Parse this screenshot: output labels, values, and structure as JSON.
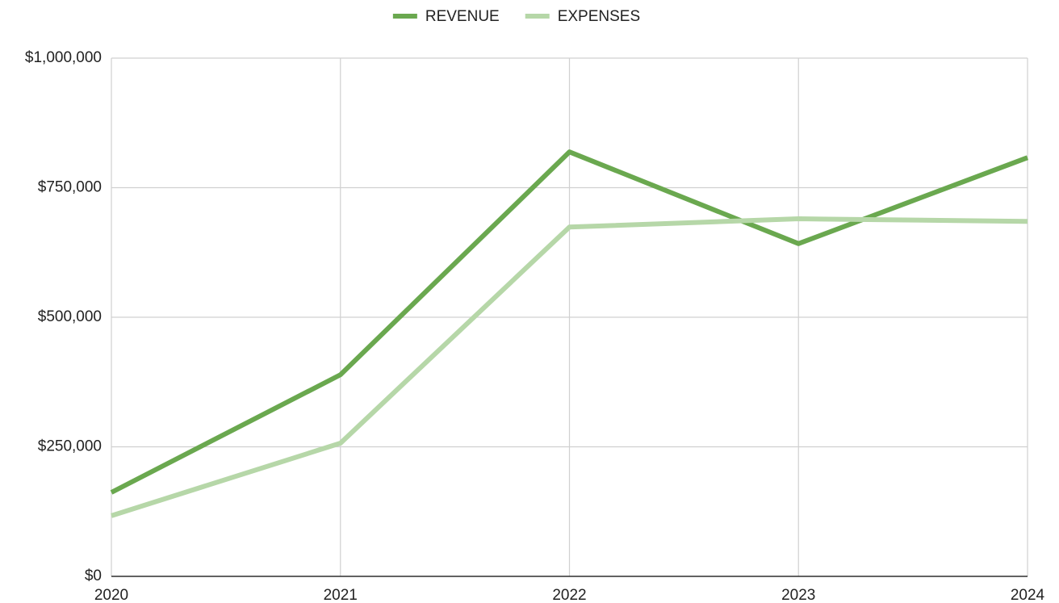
{
  "chart_data": {
    "type": "line",
    "categories": [
      "2020",
      "2021",
      "2022",
      "2023",
      "2024"
    ],
    "series": [
      {
        "name": "REVENUE",
        "color": "#6aa84f",
        "values": [
          162000,
          389000,
          819000,
          642000,
          808000
        ]
      },
      {
        "name": "EXPENSES",
        "color": "#b6d7a8",
        "values": [
          117000,
          257000,
          674000,
          690000,
          685000
        ]
      }
    ],
    "ylim": [
      0,
      1000000
    ],
    "yticks": [
      {
        "value": 0,
        "label": "$0"
      },
      {
        "value": 250000,
        "label": "$250,000"
      },
      {
        "value": 500000,
        "label": "$500,000"
      },
      {
        "value": 750000,
        "label": "$750,000"
      },
      {
        "value": 1000000,
        "label": "$1,000,000"
      }
    ],
    "grid": true,
    "legend": "top"
  }
}
